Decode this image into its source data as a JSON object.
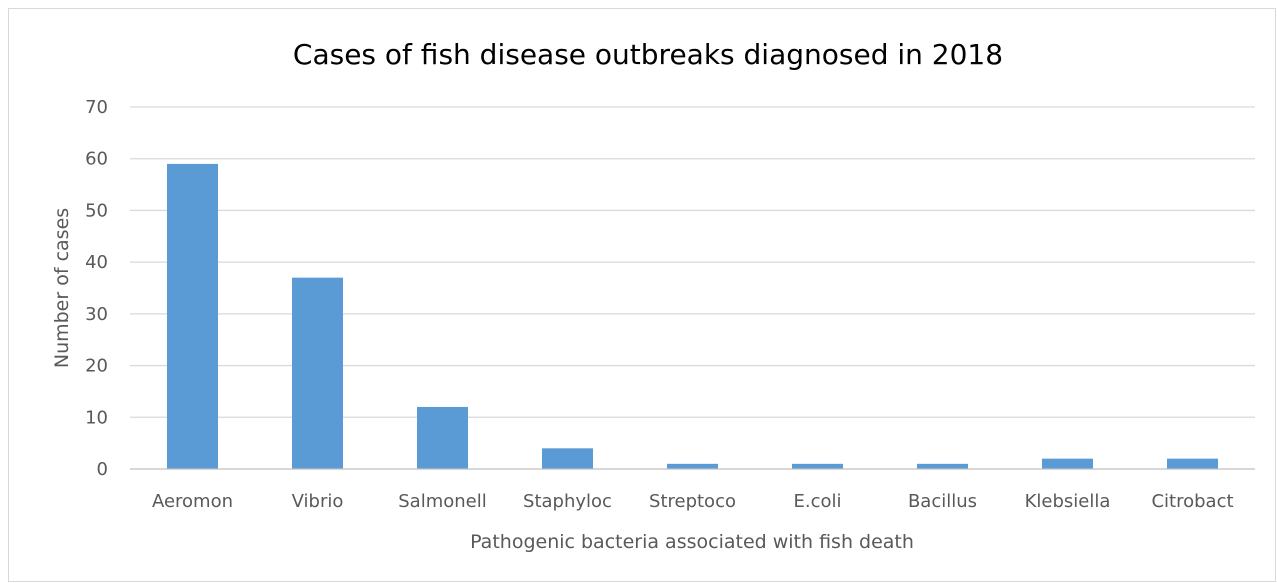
{
  "chart_data": {
    "type": "bar",
    "title": "Cases of fish disease outbreaks diagnosed in 2018",
    "xlabel": "Pathogenic bacteria associated with fish death",
    "ylabel": "Number of cases",
    "categories": [
      "Aeromon",
      "Vibrio",
      "Salmonell",
      "Staphyloc",
      "Streptoco",
      "E.coli",
      "Bacillus",
      "Klebsiella",
      "Citrobact"
    ],
    "values": [
      59,
      37,
      12,
      4,
      1,
      1,
      1,
      2,
      2
    ],
    "ylim": [
      0,
      70
    ],
    "yticks": [
      "0",
      "10",
      "20",
      "30",
      "40",
      "50",
      "60",
      "70"
    ],
    "grid": true,
    "legend": "none",
    "bar_color": "#5b9bd5"
  }
}
